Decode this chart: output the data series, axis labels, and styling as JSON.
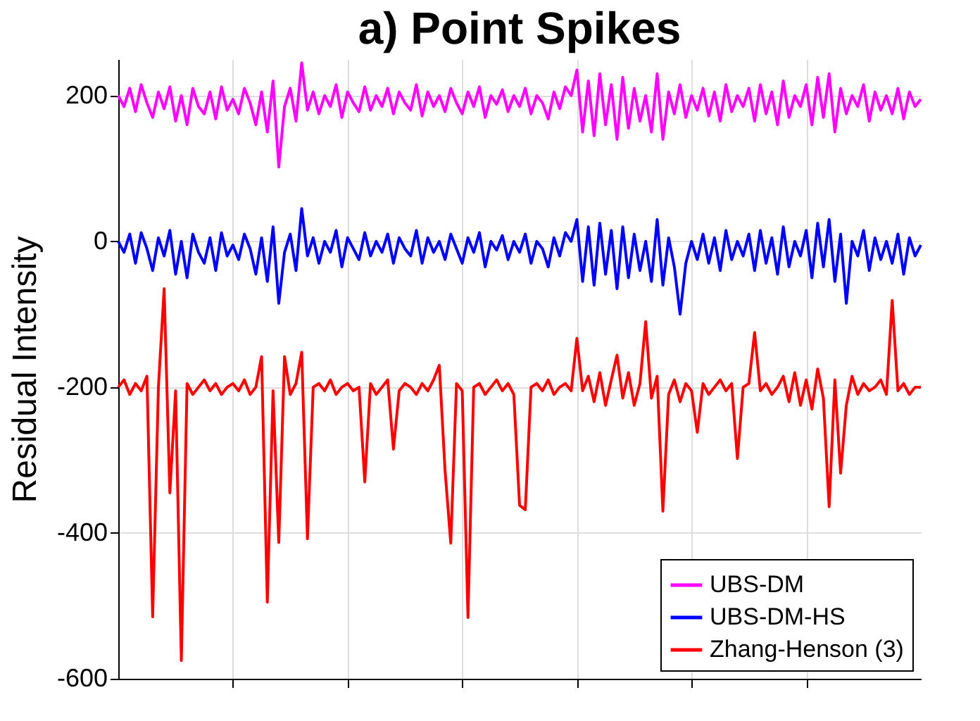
{
  "chart_data": {
    "type": "line",
    "title": "a) Point Spikes",
    "ylabel": "Residual Intensity",
    "categories": [
      null,
      null,
      null,
      null,
      null,
      null,
      null,
      null,
      null,
      null,
      null,
      null,
      null,
      null,
      null,
      null,
      null,
      null,
      null,
      null,
      null,
      null,
      null,
      null,
      null,
      null,
      null,
      null,
      null,
      null,
      null,
      null,
      null,
      null,
      null,
      null,
      null,
      null,
      null,
      null,
      null,
      null,
      null,
      null,
      null,
      null,
      null,
      null,
      null,
      null,
      null,
      null,
      null,
      null,
      null,
      null,
      null,
      null,
      null,
      null,
      null,
      null,
      null,
      null,
      null,
      null,
      null,
      null,
      null,
      null,
      null,
      null,
      null,
      null,
      null,
      null,
      null,
      null,
      null,
      null,
      null,
      null,
      null,
      null,
      null,
      null,
      null,
      null,
      null,
      null,
      null,
      null,
      null,
      null,
      null,
      null,
      null,
      null,
      null,
      null,
      null,
      null,
      null,
      null,
      null,
      null,
      null,
      null,
      null,
      null,
      null,
      null,
      null,
      null,
      null,
      null,
      null,
      null,
      null,
      null,
      null,
      null,
      null,
      null,
      null,
      null,
      null,
      null,
      null,
      null,
      null,
      null,
      null,
      null,
      null,
      null,
      null,
      null,
      null,
      null,
      null
    ],
    "ylim": [
      -600,
      250
    ],
    "yticks": [
      -600,
      -400,
      -200,
      0,
      200
    ],
    "grid": true,
    "legend": "bottom right",
    "tick_labels": "y",
    "series": [
      {
        "name": "UBS-DM",
        "color": "#ff00ff",
        "values": [
          200,
          185,
          210,
          178,
          215,
          190,
          170,
          205,
          182,
          212,
          165,
          200,
          160,
          210,
          185,
          175,
          205,
          168,
          212,
          180,
          195,
          175,
          210,
          190,
          160,
          205,
          150,
          220,
          102,
          185,
          210,
          165,
          245,
          180,
          205,
          175,
          200,
          185,
          215,
          170,
          205,
          190,
          178,
          212,
          180,
          200,
          185,
          210,
          175,
          205,
          190,
          180,
          215,
          172,
          205,
          185,
          200,
          178,
          210,
          190,
          175,
          205,
          185,
          212,
          170,
          200,
          188,
          208,
          178,
          200,
          185,
          210,
          175,
          200,
          190,
          168,
          205,
          182,
          212,
          200,
          235,
          150,
          220,
          145,
          230,
          160,
          215,
          140,
          225,
          155,
          210,
          165,
          200,
          150,
          230,
          140,
          205,
          175,
          215,
          170,
          200,
          180,
          210,
          172,
          205,
          165,
          215,
          178,
          200,
          185,
          210,
          165,
          215,
          175,
          205,
          160,
          220,
          170,
          200,
          185,
          215,
          160,
          225,
          170,
          230,
          150,
          210,
          175,
          200,
          185,
          215,
          165,
          205,
          180,
          200,
          175,
          210,
          168,
          205,
          185,
          195
        ]
      },
      {
        "name": "UBS-DM-HS",
        "color": "#0000ff",
        "values": [
          0,
          -15,
          10,
          -30,
          12,
          -10,
          -40,
          5,
          -20,
          15,
          -45,
          0,
          -50,
          10,
          -15,
          -30,
          5,
          -40,
          12,
          -20,
          -5,
          -25,
          10,
          -10,
          -45,
          5,
          -55,
          20,
          -85,
          -15,
          10,
          -40,
          45,
          -20,
          5,
          -30,
          0,
          -15,
          15,
          -35,
          5,
          -10,
          -25,
          12,
          -20,
          0,
          -15,
          10,
          -30,
          5,
          -10,
          -20,
          15,
          -30,
          5,
          -15,
          0,
          -25,
          10,
          -10,
          -30,
          5,
          -15,
          12,
          -35,
          0,
          -12,
          8,
          -25,
          0,
          -15,
          10,
          -30,
          0,
          -10,
          -35,
          5,
          -20,
          12,
          0,
          30,
          -55,
          20,
          -60,
          25,
          -45,
          15,
          -65,
          20,
          -50,
          10,
          -40,
          0,
          -55,
          30,
          -60,
          5,
          -35,
          -100,
          -30,
          0,
          -25,
          10,
          -30,
          5,
          -40,
          15,
          -25,
          0,
          -20,
          10,
          -40,
          15,
          -30,
          5,
          -45,
          20,
          -35,
          0,
          -20,
          15,
          -50,
          25,
          -35,
          30,
          -55,
          10,
          -85,
          0,
          -20,
          15,
          -40,
          5,
          -25,
          0,
          -30,
          10,
          -45,
          5,
          -20,
          -5
        ]
      },
      {
        "name": "Zhang-Henson (3)",
        "color": "#ff0000",
        "values": [
          -200,
          -190,
          -210,
          -195,
          -205,
          -185,
          -515,
          -200,
          -65,
          -345,
          -205,
          -575,
          -195,
          -210,
          -200,
          -190,
          -205,
          -195,
          -210,
          -200,
          -195,
          -205,
          -190,
          -210,
          -200,
          -158,
          -495,
          -205,
          -413,
          -158,
          -210,
          -195,
          -152,
          -408,
          -200,
          -195,
          -205,
          -190,
          -210,
          -200,
          -195,
          -205,
          -200,
          -330,
          -195,
          -210,
          -200,
          -190,
          -285,
          -205,
          -195,
          -200,
          -210,
          -195,
          -205,
          -190,
          -170,
          -314,
          -414,
          -195,
          -205,
          -516,
          -200,
          -195,
          -210,
          -200,
          -190,
          -205,
          -195,
          -210,
          -362,
          -368,
          -200,
          -195,
          -205,
          -190,
          -210,
          -200,
          -195,
          -205,
          -133,
          -205,
          -185,
          -220,
          -180,
          -225,
          -190,
          -156,
          -215,
          -180,
          -225,
          -195,
          -110,
          -215,
          -185,
          -370,
          -210,
          -190,
          -220,
          -195,
          -205,
          -262,
          -195,
          -210,
          -200,
          -190,
          -205,
          -195,
          -298,
          -200,
          -195,
          -125,
          -205,
          -195,
          -210,
          -200,
          -185,
          -220,
          -180,
          -225,
          -190,
          -230,
          -175,
          -215,
          -364,
          -190,
          -318,
          -225,
          -185,
          -210,
          -195,
          -205,
          -200,
          -190,
          -210,
          -81,
          -205,
          -195,
          -210,
          -200,
          -200
        ]
      }
    ]
  }
}
